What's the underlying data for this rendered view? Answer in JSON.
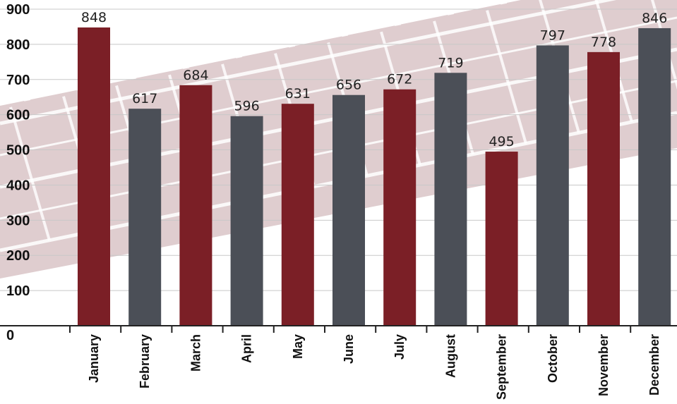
{
  "chart_data": {
    "type": "bar",
    "categories": [
      "January",
      "February",
      "March",
      "April",
      "May",
      "June",
      "July",
      "August",
      "September",
      "October",
      "November",
      "December"
    ],
    "values": [
      848,
      617,
      684,
      596,
      631,
      656,
      672,
      719,
      495,
      797,
      778,
      846
    ],
    "bar_colors": [
      "#7b1f26",
      "#4b4f57",
      "#7b1f26",
      "#4b4f57",
      "#7b1f26",
      "#4b4f57",
      "#7b1f26",
      "#4b4f57",
      "#7b1f26",
      "#4b4f57",
      "#7b1f26",
      "#4b4f57"
    ],
    "ylim": [
      0,
      900
    ],
    "yticks": [
      0,
      100,
      200,
      300,
      400,
      500,
      600,
      700,
      800,
      900
    ],
    "grid": true,
    "background_decoration": "tire-tread"
  }
}
